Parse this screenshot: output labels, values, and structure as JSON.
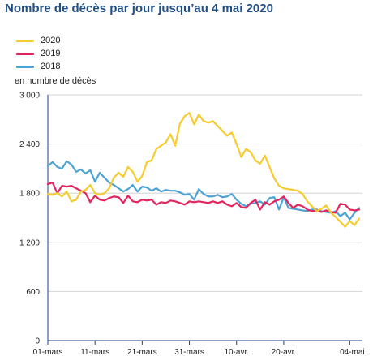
{
  "title": "Nombre de décès par jour jusqu’au 4 mai 2020",
  "unit_label": "en nombre de décès",
  "chart_data": {
    "type": "line",
    "ylim": [
      0,
      3000
    ],
    "yticks": [
      0,
      600,
      1200,
      1800,
      2400,
      3000
    ],
    "ytick_labels": [
      "0",
      "600",
      "1 200",
      "1 800",
      "2 400",
      "3 000"
    ],
    "xticks": [
      0,
      10,
      20,
      30,
      40,
      50,
      64
    ],
    "xtick_labels": [
      "01-mars",
      "11-mars",
      "21-mars",
      "31-mars",
      "10-avr.",
      "20-avr.",
      "04-mai"
    ],
    "grid": "horizontal",
    "legend_position": "top-left",
    "series": [
      {
        "name": "2020",
        "color": "#f5cb2e",
        "values": [
          1790,
          1780,
          1800,
          1760,
          1820,
          1700,
          1720,
          1820,
          1840,
          1900,
          1800,
          1780,
          1800,
          1860,
          1990,
          2050,
          2000,
          2120,
          2060,
          1940,
          2010,
          2180,
          2200,
          2340,
          2380,
          2420,
          2520,
          2380,
          2650,
          2740,
          2780,
          2640,
          2760,
          2680,
          2660,
          2680,
          2620,
          2560,
          2500,
          2540,
          2400,
          2240,
          2340,
          2300,
          2200,
          2160,
          2260,
          2120,
          1980,
          1890,
          1860,
          1850,
          1840,
          1830,
          1790,
          1700,
          1640,
          1580,
          1610,
          1650,
          1560,
          1510,
          1450,
          1390,
          1460,
          1410,
          1490
        ]
      },
      {
        "name": "2019",
        "color": "#e3245e",
        "values": [
          1910,
          1930,
          1800,
          1890,
          1880,
          1890,
          1860,
          1830,
          1800,
          1690,
          1770,
          1720,
          1710,
          1740,
          1760,
          1750,
          1680,
          1770,
          1700,
          1690,
          1720,
          1710,
          1720,
          1660,
          1690,
          1680,
          1710,
          1700,
          1680,
          1660,
          1700,
          1690,
          1700,
          1690,
          1680,
          1700,
          1680,
          1700,
          1660,
          1640,
          1680,
          1630,
          1620,
          1680,
          1720,
          1600,
          1690,
          1660,
          1700,
          1720,
          1760,
          1680,
          1620,
          1660,
          1640,
          1600,
          1580,
          1590,
          1570,
          1590,
          1570,
          1560,
          1670,
          1660,
          1600,
          1590,
          1600
        ]
      },
      {
        "name": "2018",
        "color": "#4da3d4",
        "values": [
          2130,
          2180,
          2120,
          2100,
          2190,
          2150,
          2060,
          2090,
          2040,
          2080,
          1940,
          2050,
          1990,
          1930,
          1900,
          1860,
          1820,
          1850,
          1900,
          1820,
          1880,
          1870,
          1830,
          1860,
          1820,
          1840,
          1830,
          1830,
          1810,
          1780,
          1790,
          1720,
          1850,
          1790,
          1760,
          1760,
          1780,
          1750,
          1760,
          1790,
          1720,
          1670,
          1640,
          1670,
          1680,
          1700,
          1660,
          1740,
          1750,
          1600,
          1750,
          1620,
          1610,
          1600,
          1590,
          1580,
          1600,
          1600,
          1580,
          1570,
          1560,
          1580,
          1520,
          1560,
          1480,
          1560,
          1620
        ]
      }
    ]
  }
}
